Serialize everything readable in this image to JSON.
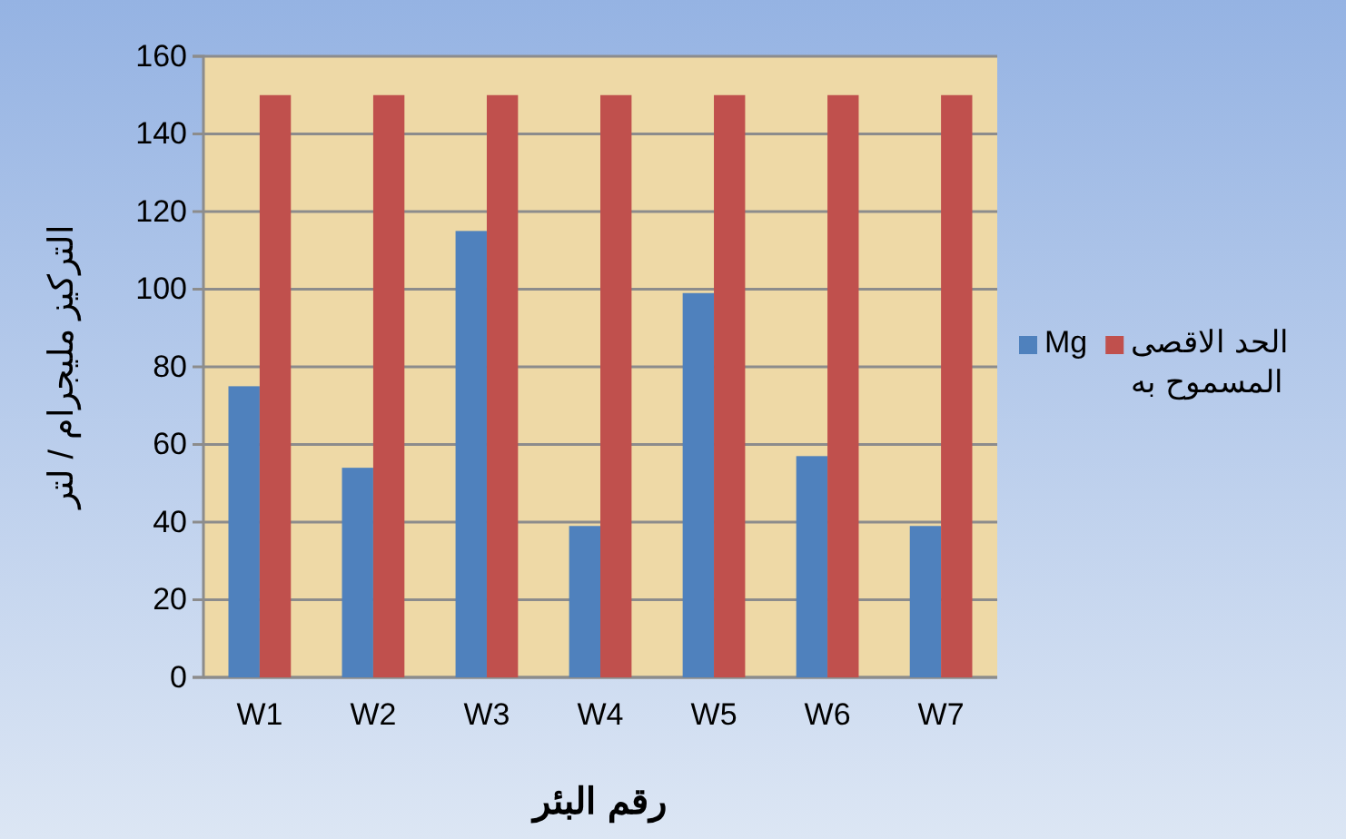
{
  "chart_data": {
    "type": "bar",
    "xlabel": "رقم البئر",
    "ylabel": "التركيز مليجرام / لتر",
    "categories": [
      "W1",
      "W2",
      "W3",
      "W4",
      "W5",
      "W6",
      "W7"
    ],
    "series": [
      {
        "name": "Mg",
        "color": "#4f81bd",
        "values": [
          75,
          54,
          115,
          39,
          99,
          57,
          39
        ]
      },
      {
        "name": "الحد الاقصى المسموح به",
        "color": "#c0504d",
        "values": [
          150,
          150,
          150,
          150,
          150,
          150,
          150
        ]
      }
    ],
    "ylim": [
      0,
      160
    ],
    "yticks": [
      0,
      20,
      40,
      60,
      80,
      100,
      120,
      140,
      160
    ],
    "grid": "y",
    "legend": "right"
  }
}
